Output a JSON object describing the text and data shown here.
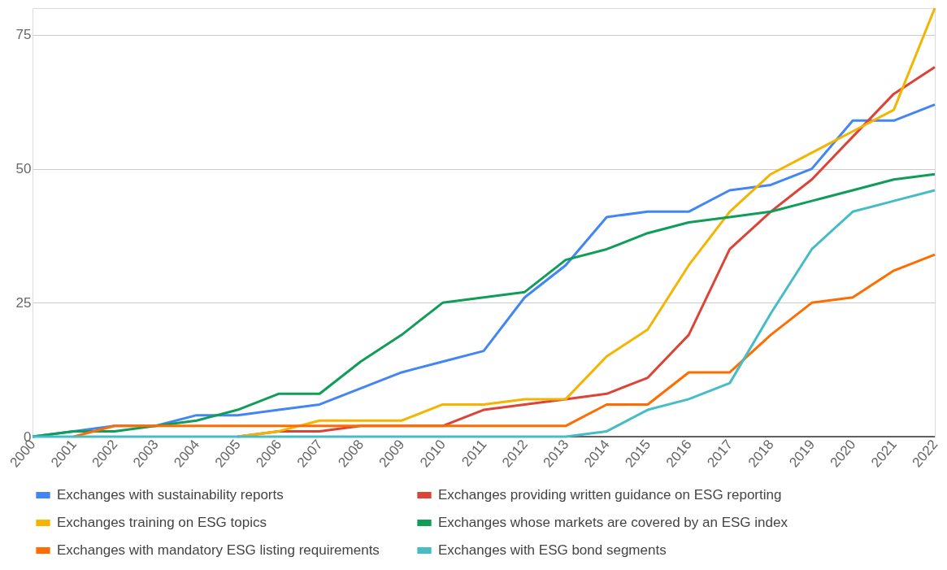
{
  "chart_data": {
    "type": "line",
    "categories": [
      "2000",
      "2001",
      "2002",
      "2003",
      "2004",
      "2005",
      "2006",
      "2007",
      "2008",
      "2009",
      "2010",
      "2011",
      "2012",
      "2013",
      "2014",
      "2015",
      "2016",
      "2017",
      "2018",
      "2019",
      "2020",
      "2021",
      "2022"
    ],
    "series": [
      {
        "name": "Exchanges with sustainability reports",
        "color": "#4285f4",
        "values": [
          0,
          1,
          2,
          2,
          4,
          4,
          5,
          6,
          9,
          12,
          14,
          16,
          26,
          32,
          41,
          42,
          42,
          46,
          47,
          50,
          59,
          59,
          62
        ]
      },
      {
        "name": "Exchanges providing written guidance on ESG reporting",
        "color": "#db4437",
        "values": [
          null,
          null,
          null,
          null,
          null,
          0,
          1,
          1,
          2,
          2,
          2,
          5,
          6,
          7,
          8,
          11,
          19,
          35,
          42,
          48,
          56,
          64,
          69
        ]
      },
      {
        "name": "Exchanges training on ESG topics",
        "color": "#f4b400",
        "values": [
          null,
          null,
          null,
          null,
          null,
          0,
          1,
          3,
          3,
          3,
          6,
          6,
          7,
          7,
          15,
          20,
          32,
          42,
          49,
          53,
          57,
          61,
          80
        ]
      },
      {
        "name": "Exchanges whose markets are covered by an ESG index",
        "color": "#0f9d58",
        "values": [
          0,
          1,
          1,
          2,
          3,
          5,
          8,
          8,
          14,
          19,
          25,
          26,
          27,
          33,
          35,
          38,
          40,
          41,
          42,
          44,
          46,
          48,
          49
        ]
      },
      {
        "name": "Exchanges with mandatory ESG listing requirements",
        "color": "#ff6d01",
        "values": [
          null,
          0,
          2,
          2,
          2,
          2,
          2,
          2,
          2,
          2,
          2,
          2,
          2,
          2,
          6,
          6,
          12,
          12,
          19,
          25,
          26,
          31,
          34
        ]
      },
      {
        "name": "Exchanges with ESG bond segments",
        "color": "#46bdc6",
        "values": [
          0,
          0,
          0,
          0,
          0,
          0,
          0,
          0,
          0,
          0,
          0,
          0,
          0,
          0,
          1,
          5,
          7,
          10,
          23,
          35,
          42,
          44,
          46
        ]
      }
    ],
    "ylim": [
      0,
      80
    ],
    "yticks": [
      0,
      25,
      50,
      75
    ],
    "grid": "y",
    "legend": "bottom",
    "marker": "none",
    "line_style": "solid"
  }
}
